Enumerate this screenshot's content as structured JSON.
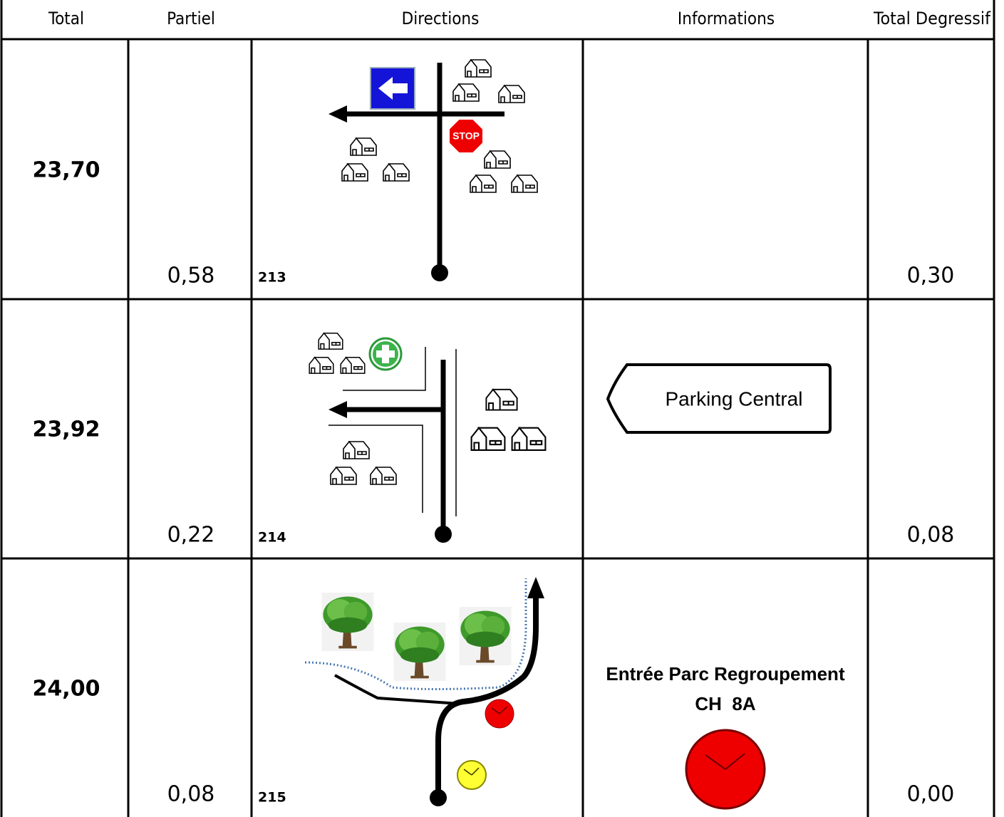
{
  "table": {
    "headers": [
      "Total",
      "Partiel",
      "Directions",
      "Informations",
      "Total Degressif"
    ],
    "rows": [
      {
        "total": "23,70",
        "partiel": "0,58",
        "number": "213",
        "degressif": "0,30"
      },
      {
        "total": "23,92",
        "partiel": "0,22",
        "number": "214",
        "info": [
          "Parking Central"
        ],
        "degressif": "0,08"
      },
      {
        "total": "24,00",
        "partiel": "0,08",
        "number": "215",
        "info": [
          "Entrée Parc Regroupement",
          "CH  8A"
        ],
        "degressif": "0,00"
      }
    ]
  }
}
